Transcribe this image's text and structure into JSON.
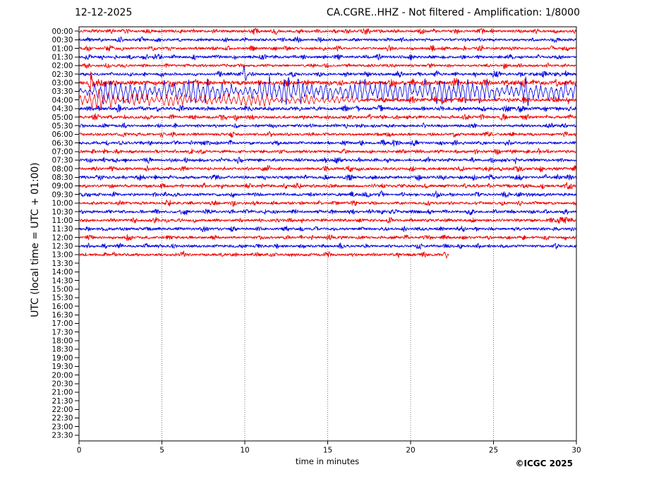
{
  "header": {
    "date": "12-12-2025",
    "title": "CA.CGRE..HHZ - Not filtered - Amplification: 1/8000"
  },
  "axes": {
    "ylabel": "UTC (local time = UTC + 01:00)",
    "xlabel": "time in minutes",
    "xticks": [
      0,
      5,
      10,
      15,
      20,
      25,
      30
    ],
    "grid_xticks": [
      5,
      10,
      15,
      20,
      25
    ],
    "x_range": [
      0,
      30
    ]
  },
  "footer": {
    "copyright": "©ICGC 2025"
  },
  "colors": {
    "red": "#ee0000",
    "blue": "#0000e0",
    "grid": "#666666",
    "frame": "#000000"
  },
  "chart_data": {
    "type": "line",
    "title": "CA.CGRE..HHZ - Not filtered - Amplification: 1/8000",
    "date": "12-12-2025",
    "xlabel": "time in minutes",
    "ylabel": "UTC (local time = UTC + 01:00)",
    "minutes_per_row": 30,
    "notes": "Helicorder: traces recorded 00:00 through ~13:22 UTC; event with large amplitude 03:00-04:30; recording stops during 13:00 row.",
    "rows": [
      {
        "time": "00:00",
        "color": "red",
        "has_data": true,
        "amp": 2.1
      },
      {
        "time": "00:30",
        "color": "blue",
        "has_data": true,
        "amp": 2.0
      },
      {
        "time": "01:00",
        "color": "red",
        "has_data": true,
        "amp": 2.0
      },
      {
        "time": "01:30",
        "color": "blue",
        "has_data": true,
        "amp": 2.0
      },
      {
        "time": "02:00",
        "color": "red",
        "has_data": true,
        "amp": 1.9
      },
      {
        "time": "02:30",
        "color": "blue",
        "has_data": true,
        "amp": 2.0,
        "segs": [
          {
            "t0": 0,
            "t1": 27.2,
            "a0": 2.0,
            "a1": 2.0,
            "mode": "hf"
          },
          {
            "t0": 27.2,
            "t1": 29.6,
            "a0": 3.4,
            "a1": 3.4,
            "mode": "hf"
          },
          {
            "t0": 29.6,
            "t1": 30,
            "a0": 2.2,
            "a1": 2.2,
            "mode": "hf"
          }
        ],
        "spikes": [
          {
            "m": 9.95,
            "a": 9.5
          },
          {
            "m": 10.07,
            "a": -9.0
          }
        ]
      },
      {
        "time": "03:00",
        "color": "red",
        "has_data": true,
        "segs": [
          {
            "t0": 0,
            "t1": 0.65,
            "a0": 2.7,
            "a1": 2.7,
            "mode": "hf"
          },
          {
            "t0": 0.65,
            "t1": 2.3,
            "a0": 8.0,
            "a1": 3.4,
            "mode": "hf"
          },
          {
            "t0": 2.3,
            "t1": 26,
            "a0": 2.9,
            "a1": 2.9,
            "mode": "hf"
          },
          {
            "t0": 26,
            "t1": 30,
            "a0": 3.4,
            "a1": 3.4,
            "mode": "hf"
          }
        ]
      },
      {
        "time": "03:30",
        "color": "blue",
        "has_data": true,
        "segs": [
          {
            "t0": 0,
            "t1": 1.3,
            "a0": 5.5,
            "a1": 8.0,
            "mode": "lf"
          },
          {
            "t0": 1.3,
            "t1": 30,
            "a0": 12.0,
            "a1": 12.0,
            "mode": "lf"
          }
        ]
      },
      {
        "time": "04:00",
        "color": "red",
        "has_data": true,
        "segs": [
          {
            "t0": 0,
            "t1": 3,
            "a0": 9.6,
            "a1": 8.4,
            "mode": "lf"
          },
          {
            "t0": 3,
            "t1": 9,
            "a0": 8.0,
            "a1": 6.6,
            "mode": "lf"
          },
          {
            "t0": 9,
            "t1": 12,
            "a0": 7.2,
            "a1": 6.4,
            "mode": "lf"
          },
          {
            "t0": 12,
            "t1": 17,
            "a0": 6.0,
            "a1": 3.4,
            "mode": "lf"
          },
          {
            "t0": 17,
            "t1": 30,
            "a0": 2.6,
            "a1": 2.5,
            "mode": "hf"
          }
        ]
      },
      {
        "time": "04:30",
        "color": "blue",
        "has_data": true,
        "amp": 2.6
      },
      {
        "time": "05:00",
        "color": "red",
        "has_data": true,
        "amp": 2.1
      },
      {
        "time": "05:30",
        "color": "blue",
        "has_data": true,
        "amp": 2.0
      },
      {
        "time": "06:00",
        "color": "red",
        "has_data": true,
        "amp": 2.0
      },
      {
        "time": "06:30",
        "color": "blue",
        "has_data": true,
        "amp": 2.0
      },
      {
        "time": "07:00",
        "color": "red",
        "has_data": true,
        "amp": 2.0
      },
      {
        "time": "07:30",
        "color": "blue",
        "has_data": true,
        "amp": 2.1
      },
      {
        "time": "08:00",
        "color": "red",
        "has_data": true,
        "amp": 2.2
      },
      {
        "time": "08:30",
        "color": "blue",
        "has_data": true,
        "amp": 2.2
      },
      {
        "time": "09:00",
        "color": "red",
        "has_data": true,
        "amp": 2.2
      },
      {
        "time": "09:30",
        "color": "blue",
        "has_data": true,
        "segs": [
          {
            "t0": 0,
            "t1": 0.7,
            "a0": 3.8,
            "a1": 3.8,
            "mode": "hf"
          },
          {
            "t0": 0.7,
            "t1": 30,
            "a0": 2.1,
            "a1": 2.1,
            "mode": "hf"
          }
        ]
      },
      {
        "time": "10:00",
        "color": "red",
        "has_data": true,
        "amp": 2.0
      },
      {
        "time": "10:30",
        "color": "blue",
        "has_data": true,
        "amp": 2.0
      },
      {
        "time": "11:00",
        "color": "red",
        "has_data": true,
        "segs": [
          {
            "t0": 0,
            "t1": 28.2,
            "a0": 2.0,
            "a1": 2.0,
            "mode": "hf"
          },
          {
            "t0": 28.2,
            "t1": 29.8,
            "a0": 4.0,
            "a1": 4.0,
            "mode": "hf"
          },
          {
            "t0": 29.8,
            "t1": 30,
            "a0": 2.4,
            "a1": 2.4,
            "mode": "hf"
          }
        ]
      },
      {
        "time": "11:30",
        "color": "blue",
        "has_data": true,
        "amp": 2.1
      },
      {
        "time": "12:00",
        "color": "red",
        "has_data": true,
        "amp": 2.0
      },
      {
        "time": "12:30",
        "color": "blue",
        "has_data": true,
        "amp": 2.0
      },
      {
        "time": "13:00",
        "color": "red",
        "has_data": true,
        "amp": 2.1,
        "end": 22.3,
        "spikes": [
          {
            "m": 22.05,
            "a": 3.5
          },
          {
            "m": 22.16,
            "a": -3.5
          }
        ]
      },
      {
        "time": "13:30",
        "color": "blue",
        "has_data": false
      },
      {
        "time": "14:00",
        "color": "red",
        "has_data": false
      },
      {
        "time": "14:30",
        "color": "blue",
        "has_data": false
      },
      {
        "time": "15:00",
        "color": "red",
        "has_data": false
      },
      {
        "time": "15:30",
        "color": "blue",
        "has_data": false
      },
      {
        "time": "16:00",
        "color": "red",
        "has_data": false
      },
      {
        "time": "16:30",
        "color": "blue",
        "has_data": false
      },
      {
        "time": "17:00",
        "color": "red",
        "has_data": false
      },
      {
        "time": "17:30",
        "color": "blue",
        "has_data": false
      },
      {
        "time": "18:00",
        "color": "red",
        "has_data": false
      },
      {
        "time": "18:30",
        "color": "blue",
        "has_data": false
      },
      {
        "time": "19:00",
        "color": "red",
        "has_data": false
      },
      {
        "time": "19:30",
        "color": "blue",
        "has_data": false
      },
      {
        "time": "20:00",
        "color": "red",
        "has_data": false
      },
      {
        "time": "20:30",
        "color": "blue",
        "has_data": false
      },
      {
        "time": "21:00",
        "color": "red",
        "has_data": false
      },
      {
        "time": "21:30",
        "color": "blue",
        "has_data": false
      },
      {
        "time": "22:00",
        "color": "red",
        "has_data": false
      },
      {
        "time": "22:30",
        "color": "blue",
        "has_data": false
      },
      {
        "time": "23:00",
        "color": "red",
        "has_data": false
      },
      {
        "time": "23:30",
        "color": "blue",
        "has_data": false
      }
    ]
  }
}
